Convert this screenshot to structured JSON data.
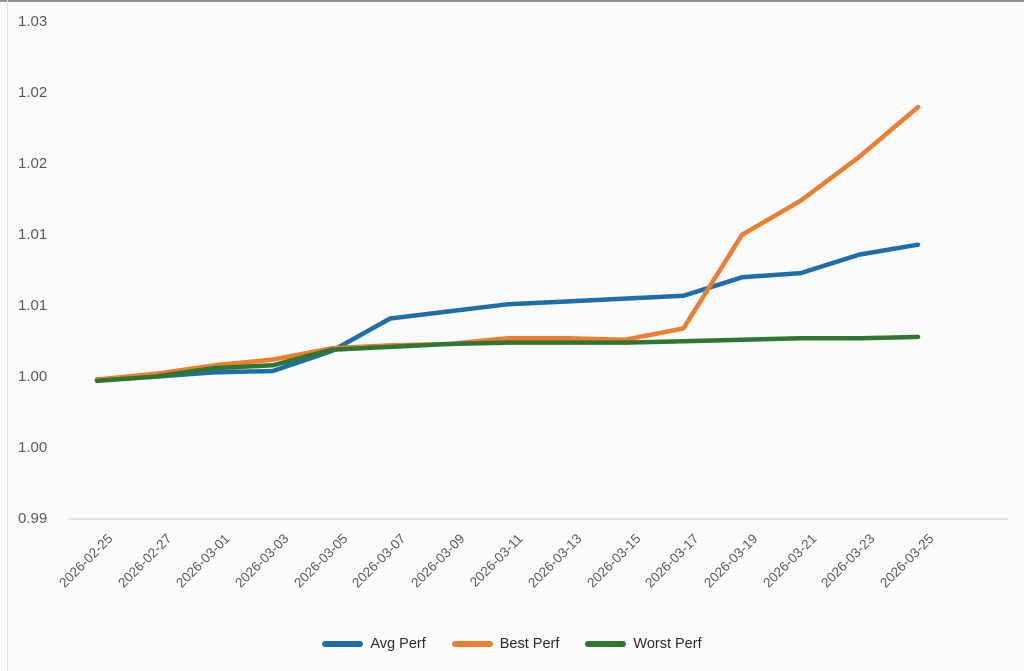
{
  "chart_data": {
    "type": "line",
    "title": "",
    "xlabel": "",
    "ylabel": "",
    "x": [
      "2026-02-25",
      "2026-02-27",
      "2026-03-01",
      "2026-03-03",
      "2026-03-05",
      "2026-03-07",
      "2026-03-09",
      "2026-03-11",
      "2026-03-13",
      "2026-03-15",
      "2026-03-17",
      "2026-03-19",
      "2026-03-21",
      "2026-03-23",
      "2026-03-25"
    ],
    "series": [
      {
        "name": "Avg Perf",
        "color": "#1e6fa9",
        "values": [
          0.9998,
          1.0,
          1.0003,
          1.0004,
          1.0018,
          1.0041,
          1.0046,
          1.0051,
          1.0053,
          1.0055,
          1.0057,
          1.007,
          1.0073,
          1.0086,
          1.0093
        ]
      },
      {
        "name": "Best Perf",
        "color": "#ed7d2f",
        "values": [
          0.9998,
          1.0002,
          1.0008,
          1.0012,
          1.002,
          1.0022,
          1.0023,
          1.0027,
          1.0027,
          1.0026,
          1.0034,
          1.01,
          1.0124,
          1.0155,
          1.019
        ]
      },
      {
        "name": "Worst Perf",
        "color": "#2e7631",
        "values": [
          0.9997,
          1.0,
          1.0006,
          1.0008,
          1.0019,
          1.0021,
          1.0023,
          1.0024,
          1.0024,
          1.0024,
          1.0025,
          1.0026,
          1.0027,
          1.0027,
          1.0028
        ]
      }
    ],
    "y_axis": {
      "min": 0.99,
      "max": 1.025,
      "step": 0.005,
      "ticks": [
        {
          "label": "1.03",
          "value": 1.025
        },
        {
          "label": "1.02",
          "value": 1.02
        },
        {
          "label": "1.02",
          "value": 1.015
        },
        {
          "label": "1.01",
          "value": 1.01
        },
        {
          "label": "1.01",
          "value": 1.005
        },
        {
          "label": "1.00",
          "value": 1.0
        },
        {
          "label": "1.00",
          "value": 0.995
        },
        {
          "label": "0.99",
          "value": 0.99
        }
      ]
    },
    "grid": false,
    "legend_position": "bottom"
  },
  "colors": {
    "background": "#fbfbfb",
    "axis_line": "#d8d8d8",
    "tick_text": "#595959",
    "legend_text": "#2b2b2b",
    "top_border": "#8f8f8f",
    "left_border": "#dedede"
  }
}
